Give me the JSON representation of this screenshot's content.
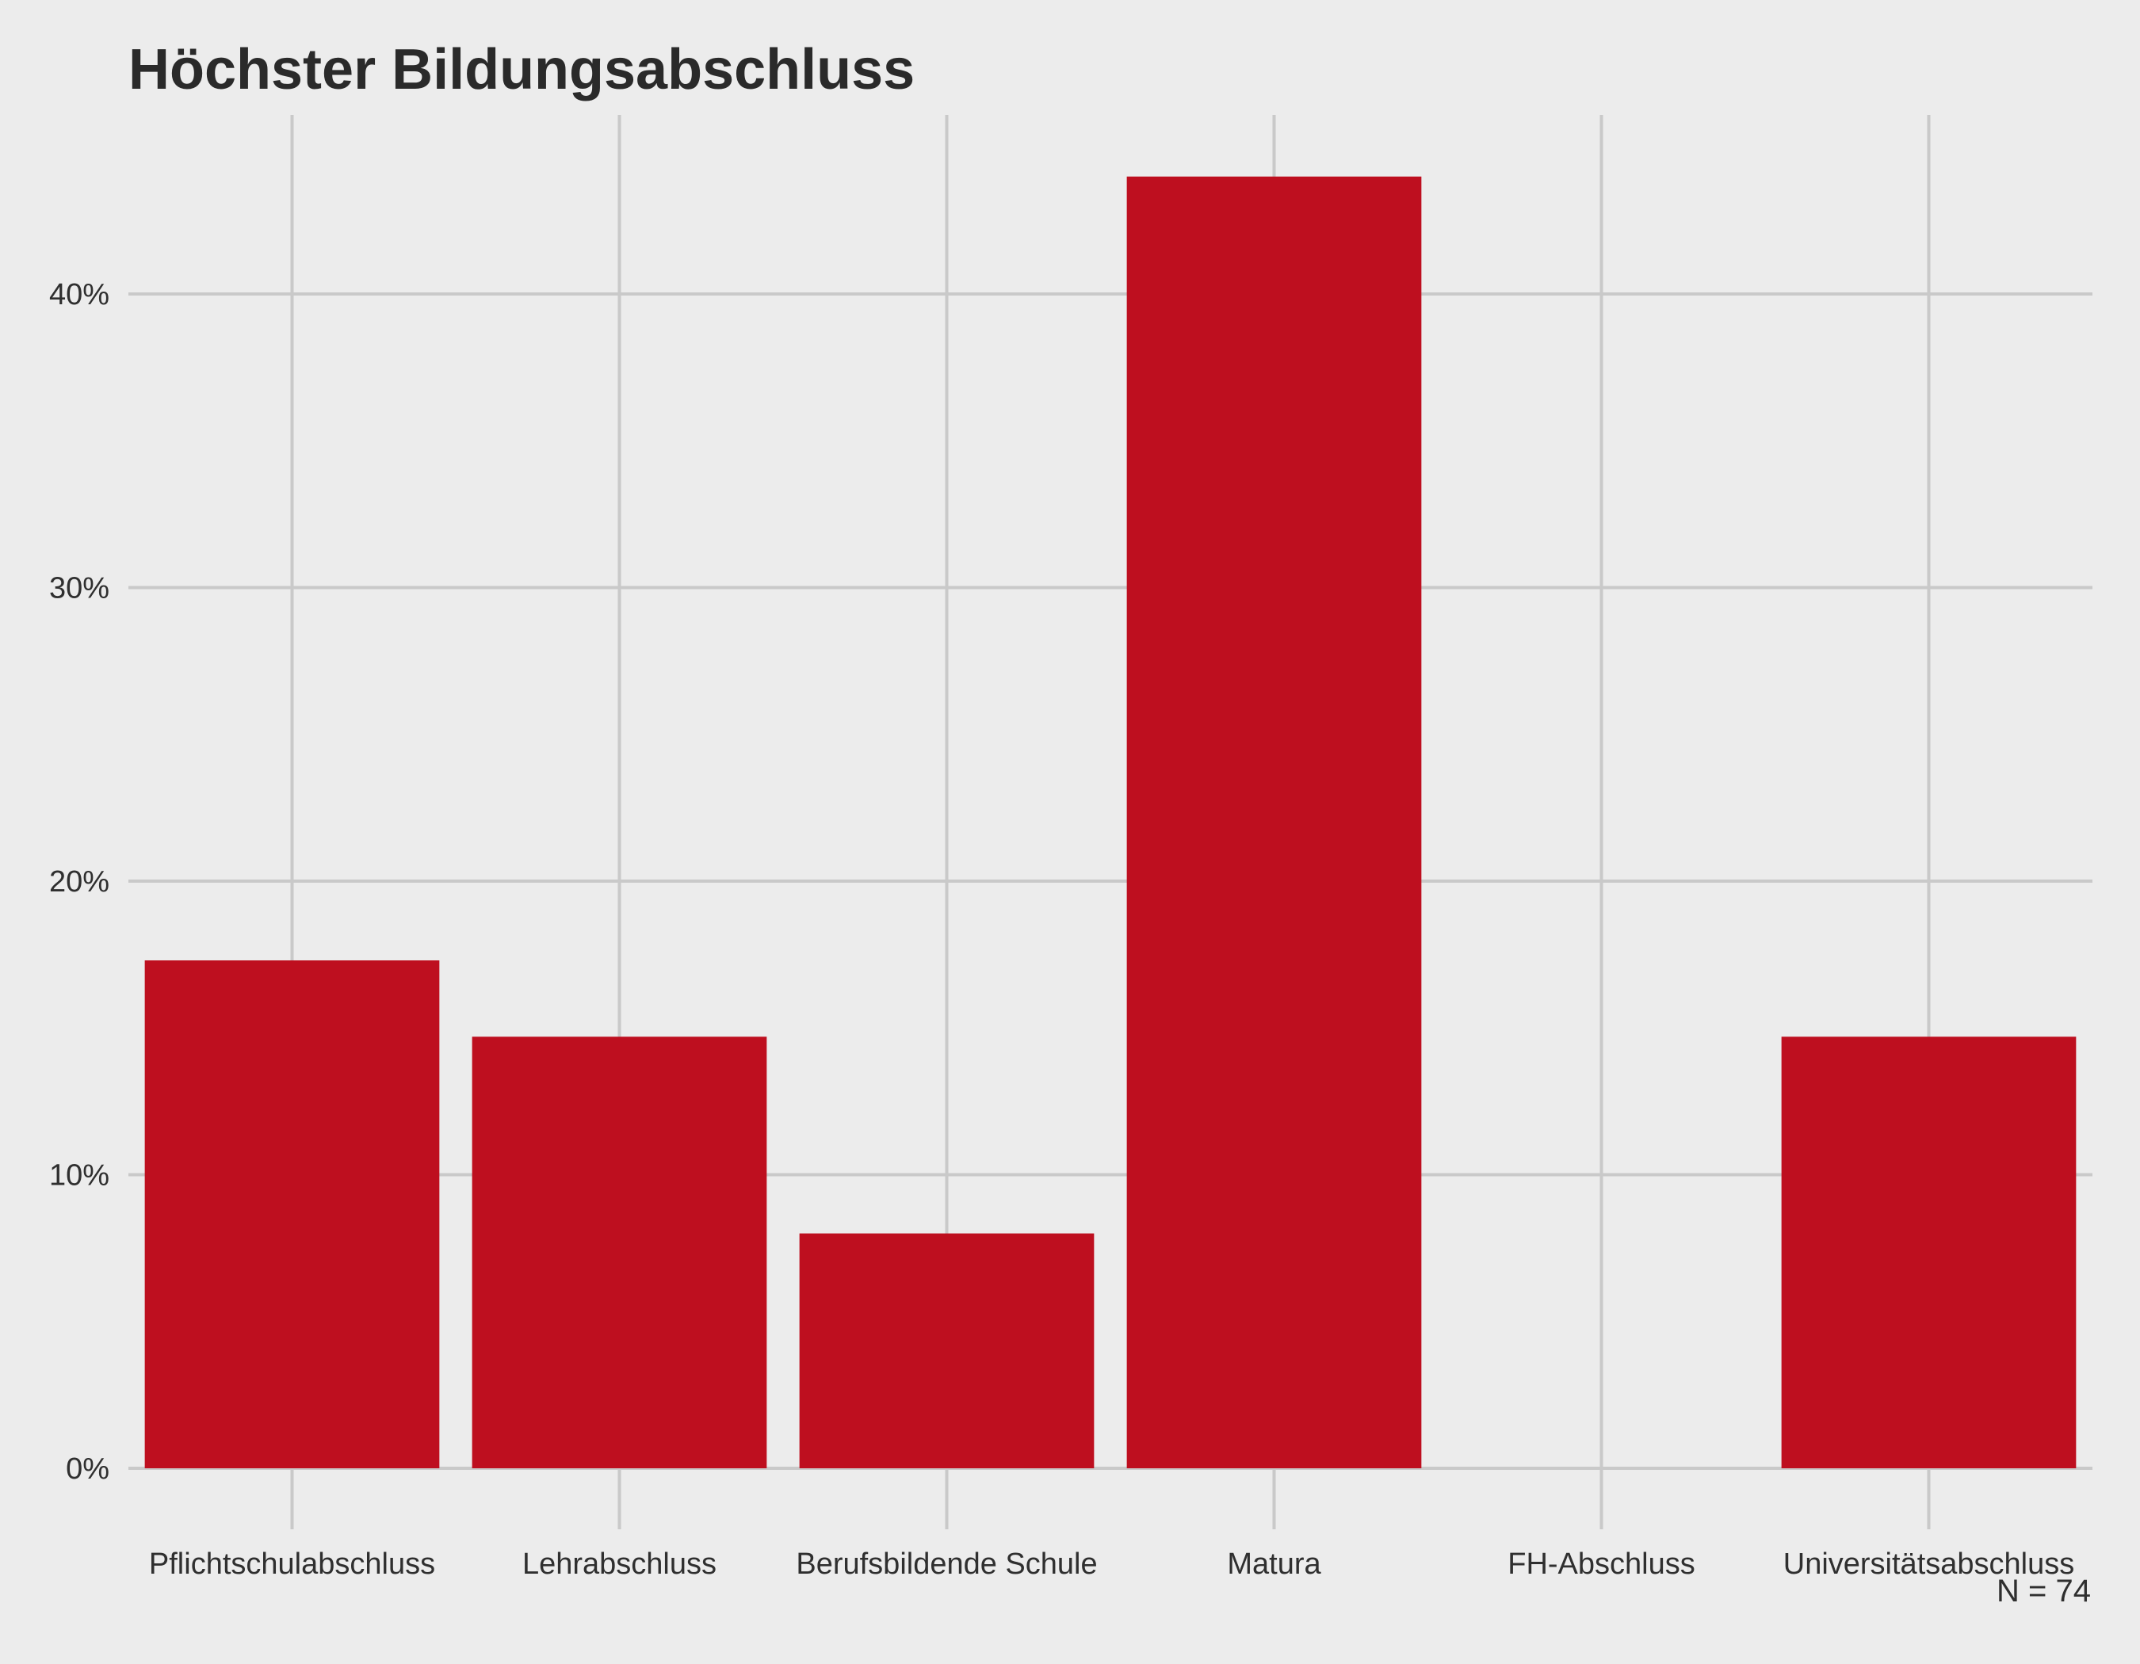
{
  "chart_data": {
    "type": "bar",
    "title": "Höchster Bildungsabschluss",
    "caption": "N = 74",
    "categories": [
      "Pflichtschulabschluss",
      "Lehrabschluss",
      "Berufsbildende Schule",
      "Matura",
      "FH-Abschluss",
      "Universitätsabschluss"
    ],
    "values": [
      17.3,
      14.7,
      8.0,
      44.0,
      0,
      14.7
    ],
    "ylim": [
      0,
      45
    ],
    "yticks": [
      0,
      10,
      20,
      30,
      40
    ],
    "ytick_labels": [
      "0%",
      "10%",
      "20%",
      "30%",
      "40%"
    ],
    "xlabel": "",
    "ylabel": "",
    "grid": true,
    "legend": "none",
    "bar_color": "#be0f1f",
    "grid_color": "#c9c9c9",
    "background": "#ececec"
  }
}
